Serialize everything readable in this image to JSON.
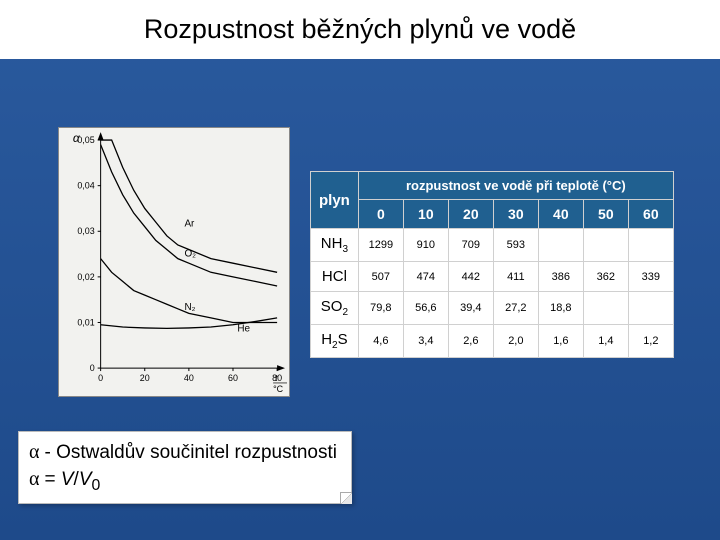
{
  "title": "Rozpustnost běžných plynů ve vodě",
  "table": {
    "header_span": "rozpustnost ve vodě při teplotě (°C)",
    "col0": "plyn",
    "temps": [
      "0",
      "10",
      "20",
      "30",
      "40",
      "50",
      "60"
    ],
    "gases": [
      {
        "name": "NH",
        "sub": "3",
        "vals": [
          "1299",
          "910",
          "709",
          "593",
          "",
          "",
          ""
        ]
      },
      {
        "name": "HCl",
        "sub": "",
        "vals": [
          "507",
          "474",
          "442",
          "411",
          "386",
          "362",
          "339"
        ]
      },
      {
        "name": "SO",
        "sub": "2",
        "vals": [
          "79,8",
          "56,6",
          "39,4",
          "27,2",
          "18,8",
          "",
          ""
        ]
      },
      {
        "name": "H",
        "sub": "2",
        "suffix": "S",
        "vals": [
          "4,6",
          "3,4",
          "2,6",
          "2,0",
          "1,6",
          "1,4",
          "1,2"
        ]
      }
    ]
  },
  "footnote": {
    "l1_pre": "α ",
    "l1_rest": " - Ostwaldův součinitel rozpustnosti",
    "l2_pre": "α ",
    "l2_eq": " = ",
    "l2_v": "V",
    "l2_slash": "/",
    "l2_v0": "V",
    "l2_sub0": "0"
  },
  "chart": {
    "background": "#f2f2ef",
    "axis_color": "#000",
    "tick_color": "#000",
    "font_size": 9,
    "y_label": "α",
    "y_ticks": [
      "0",
      "0,01",
      "0,02",
      "0,03",
      "0,04",
      "0,05"
    ],
    "x_ticks": [
      "0",
      "20",
      "40",
      "60",
      "80"
    ],
    "x_label_top": "t",
    "x_label_bot": "°C",
    "x_domain": [
      0,
      80
    ],
    "y_domain": [
      0,
      0.05
    ],
    "curves": [
      {
        "label": "Ar",
        "points": [
          [
            0,
            0.056
          ],
          [
            5,
            0.05
          ],
          [
            10,
            0.044
          ],
          [
            15,
            0.039
          ],
          [
            20,
            0.035
          ],
          [
            25,
            0.032
          ],
          [
            30,
            0.029
          ],
          [
            35,
            0.027
          ],
          [
            40,
            0.026
          ],
          [
            50,
            0.024
          ],
          [
            60,
            0.023
          ],
          [
            70,
            0.022
          ],
          [
            80,
            0.021
          ]
        ]
      },
      {
        "label": "O₂",
        "points": [
          [
            0,
            0.049
          ],
          [
            5,
            0.043
          ],
          [
            10,
            0.038
          ],
          [
            15,
            0.034
          ],
          [
            20,
            0.031
          ],
          [
            25,
            0.028
          ],
          [
            30,
            0.026
          ],
          [
            35,
            0.024
          ],
          [
            40,
            0.023
          ],
          [
            50,
            0.021
          ],
          [
            60,
            0.02
          ],
          [
            70,
            0.019
          ],
          [
            80,
            0.018
          ]
        ]
      },
      {
        "label": "N₂",
        "points": [
          [
            0,
            0.024
          ],
          [
            5,
            0.021
          ],
          [
            10,
            0.019
          ],
          [
            15,
            0.017
          ],
          [
            20,
            0.016
          ],
          [
            25,
            0.015
          ],
          [
            30,
            0.014
          ],
          [
            35,
            0.013
          ],
          [
            40,
            0.012
          ],
          [
            50,
            0.011
          ],
          [
            60,
            0.01
          ],
          [
            70,
            0.01
          ],
          [
            80,
            0.01
          ]
        ]
      },
      {
        "label": "He",
        "points": [
          [
            0,
            0.0095
          ],
          [
            10,
            0.009
          ],
          [
            20,
            0.0088
          ],
          [
            30,
            0.0087
          ],
          [
            40,
            0.0088
          ],
          [
            50,
            0.009
          ],
          [
            60,
            0.0095
          ],
          [
            70,
            0.0102
          ],
          [
            80,
            0.011
          ]
        ]
      }
    ],
    "curve_labels": [
      {
        "text": "Ar",
        "x": 38,
        "y": 0.031
      },
      {
        "text": "O₂",
        "x": 38,
        "y": 0.0245
      },
      {
        "text": "N₂",
        "x": 38,
        "y": 0.0127
      },
      {
        "text": "He",
        "x": 62,
        "y": 0.008
      }
    ]
  }
}
